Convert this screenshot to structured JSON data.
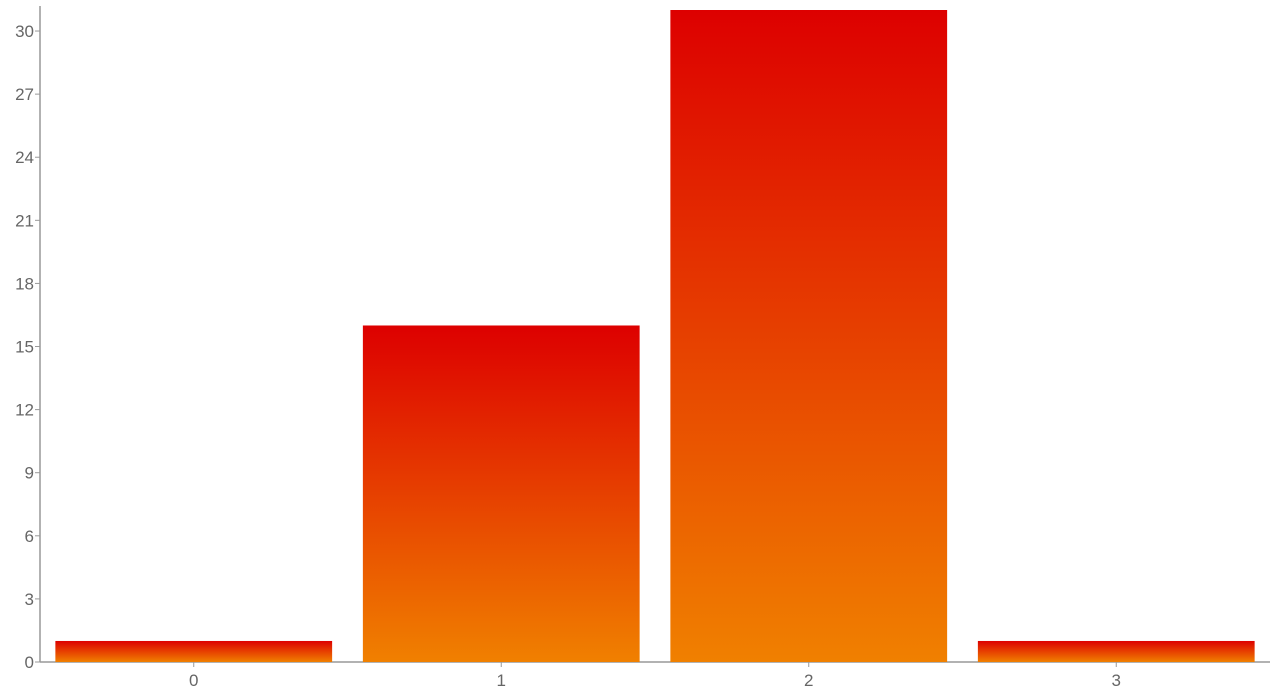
{
  "chart_data": {
    "type": "bar",
    "title": "",
    "xlabel": "",
    "ylabel": "",
    "categories": [
      "0",
      "1",
      "2",
      "3"
    ],
    "values": [
      1,
      16,
      31,
      1
    ],
    "ylim": [
      0,
      31
    ],
    "yticks": [
      "0",
      "3",
      "6",
      "9",
      "12",
      "15",
      "18",
      "21",
      "24",
      "27",
      "30"
    ],
    "grid": false,
    "bar_gradient": {
      "top": "#dd0000",
      "bottom": "#f08000"
    },
    "axis_color": "#999999",
    "tick_label_color": "#666666"
  }
}
